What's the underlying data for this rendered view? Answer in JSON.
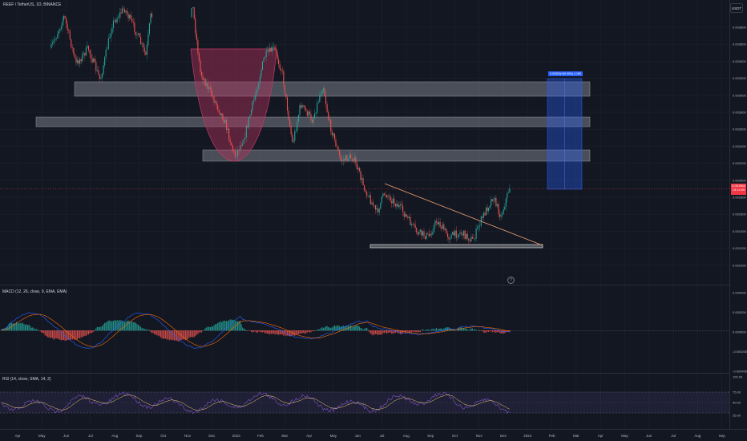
{
  "header": {
    "symbol_title": "REEF / TetherUS, 1D, BINANCE",
    "currency": "USDT"
  },
  "price_axis": {
    "ticks": [
      "0.003800",
      "0.003600",
      "0.003400",
      "0.003200",
      "0.003000",
      "0.002800",
      "0.002600",
      "0.002400",
      "0.002200",
      "0.002000",
      "0.001800",
      "0.001600",
      "0.001400",
      "0.001200",
      "0.001000"
    ],
    "current_price": "0.001984",
    "countdown": "13:14:09"
  },
  "macd_pane": {
    "legend": "MACD (12, 26, close, 9, EMA, EMA)",
    "ticks": [
      "0.000400",
      "0.000200",
      "0.000000",
      "-0.000200",
      "-0.000400"
    ]
  },
  "rsi_pane": {
    "legend": "RSI (14, close, SMA, 14, 2)",
    "ticks": [
      "100.00",
      "75.00",
      "50.00",
      "25.00"
    ]
  },
  "time_axis": {
    "labels": [
      "Apr",
      "May",
      "Jun",
      "Jul",
      "Aug",
      "Sep",
      "Oct",
      "Nov",
      "Dec",
      "2023",
      "Feb",
      "Mar",
      "Apr",
      "May",
      "Jun",
      "Jul",
      "Aug",
      "Sep",
      "Oct",
      "Nov",
      "Dec",
      "2024",
      "Feb",
      "Mar",
      "Apr",
      "May",
      "Jun",
      "Jul",
      "Aug",
      "Sep"
    ]
  },
  "annotations": {
    "target_label": "0.00320(+60.00%) 1,189"
  },
  "colors": {
    "background": "#131722",
    "up": "#26a69a",
    "down": "#ef5350",
    "macd_line": "#2962ff",
    "signal_line": "#ff6d00",
    "rsi_line": "#7e57c2",
    "zone": "#787b86",
    "cup": "#b2335a",
    "trendline": "#f0a070",
    "target_box": "#2962ff",
    "price_tag": "#f23645"
  },
  "icons": [
    "replay-icon"
  ]
}
